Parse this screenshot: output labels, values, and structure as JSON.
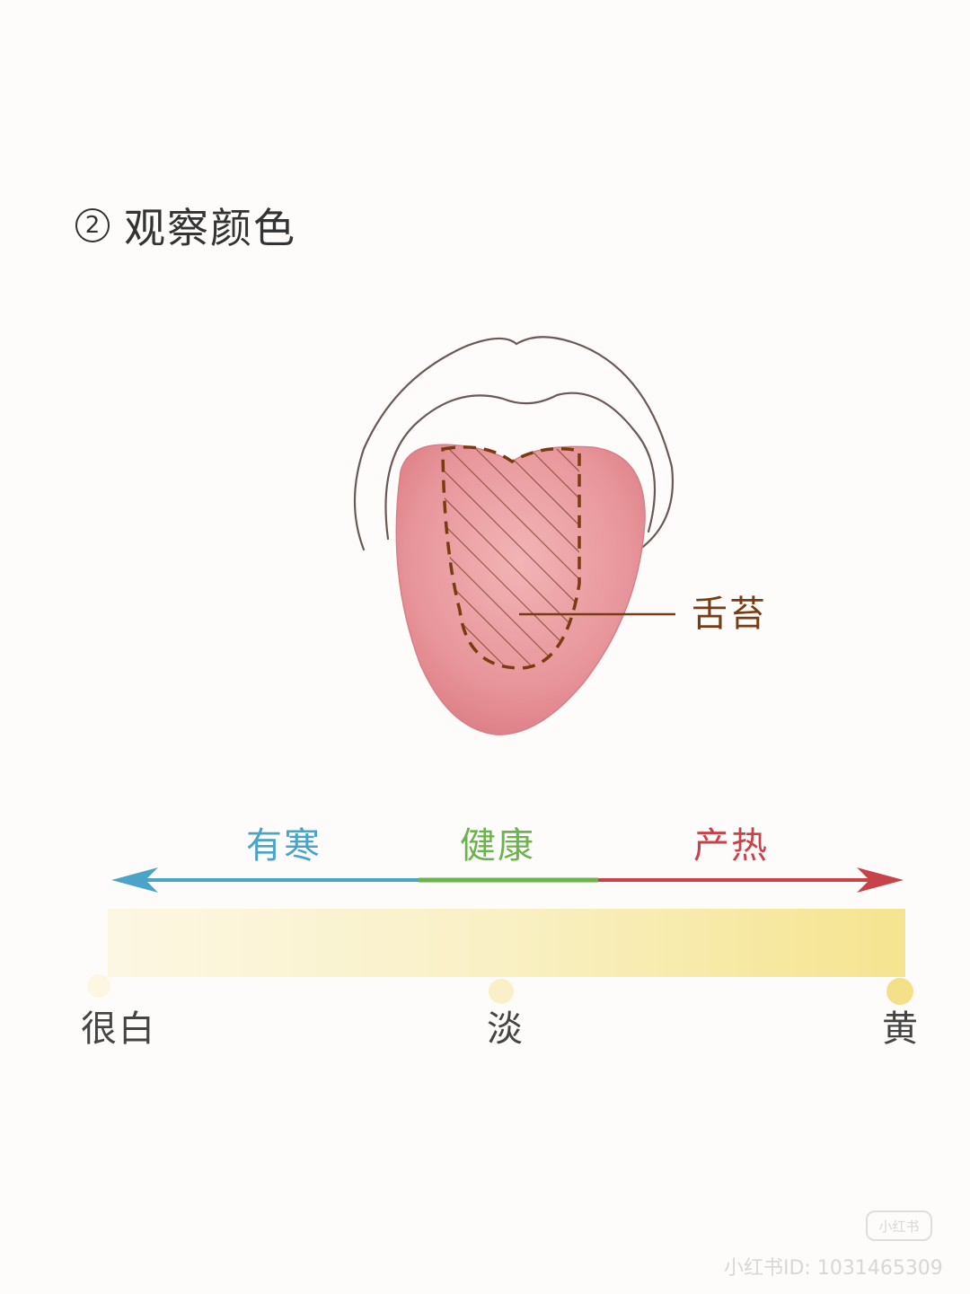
{
  "section": {
    "number": "2",
    "title": "观察颜色"
  },
  "tongue": {
    "coating_label": "舌苔"
  },
  "scale_top": {
    "left": "有寒",
    "middle": "健康",
    "right": "产热"
  },
  "scale_bottom": {
    "left": "很白",
    "middle": "淡",
    "right": "黄"
  },
  "colors": {
    "cold": "#4aa3c8",
    "healthy": "#6cb24e",
    "heat": "#c8424a",
    "coating_outline": "#7a3a12",
    "tongue": "#e79a9e"
  },
  "watermark": {
    "logo": "小红书",
    "id": "小红书ID: 1031465309"
  }
}
